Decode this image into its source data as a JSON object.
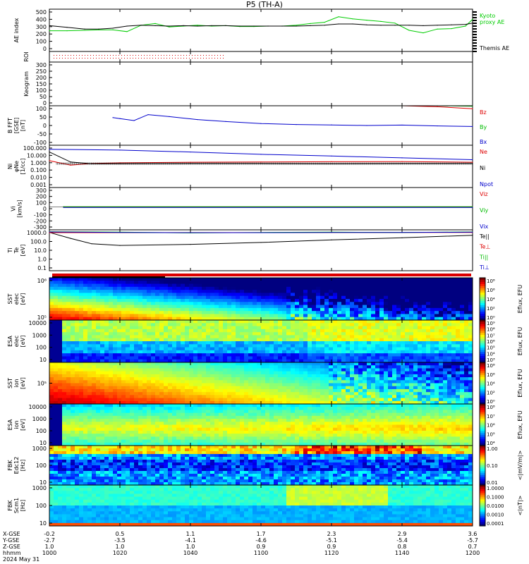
{
  "title": "P5 (TH-A)",
  "chart_data": [
    {
      "type": "line",
      "panel": "ae",
      "ylabel": "AE index",
      "ylim": [
        0,
        500
      ],
      "yticks": [
        "500",
        "400",
        "300",
        "200",
        "100",
        "0"
      ],
      "series": [
        {
          "name": "Kyoto\nproxy AE",
          "color": "#00cc00",
          "x": [
            0,
            5,
            10,
            14,
            18,
            22,
            26,
            30,
            34,
            38,
            42,
            46,
            50,
            54,
            58,
            62,
            66,
            70,
            74,
            78,
            82,
            86,
            90,
            94,
            98,
            102,
            106,
            110,
            114,
            118,
            120
          ],
          "y": [
            245,
            245,
            250,
            255,
            255,
            235,
            310,
            330,
            290,
            300,
            310,
            300,
            305,
            295,
            295,
            300,
            300,
            310,
            330,
            345,
            410,
            385,
            370,
            355,
            335,
            250,
            220,
            265,
            270,
            300,
            380
          ]
        },
        {
          "name": "Themis AE",
          "color": "#000000",
          "x": [
            0,
            5,
            10,
            14,
            18,
            22,
            26,
            30,
            34,
            38,
            42,
            46,
            50,
            54,
            58,
            62,
            66,
            70,
            74,
            78,
            82,
            86,
            90,
            94,
            98,
            102,
            106,
            110,
            114,
            118,
            120
          ],
          "y": [
            305,
            285,
            265,
            265,
            275,
            300,
            310,
            305,
            300,
            305,
            300,
            305,
            305,
            300,
            300,
            300,
            300,
            300,
            305,
            310,
            325,
            325,
            315,
            310,
            310,
            310,
            305,
            310,
            315,
            320,
            335
          ]
        }
      ]
    },
    {
      "type": "scatter",
      "panel": "roi",
      "ylabel": "ROI"
    },
    {
      "type": "line",
      "panel": "keogram",
      "ylabel": "Keogram",
      "ylim": [
        0,
        300
      ],
      "yticks": [
        "300",
        "250",
        "200",
        "150",
        "100",
        "50",
        "0"
      ]
    },
    {
      "type": "line",
      "panel": "bfft",
      "ylabel": "B FFT\n[GSE]\n[nT]",
      "ylim": [
        -100,
        100
      ],
      "yticks": [
        "100",
        "50",
        "0",
        "-50",
        "-100"
      ],
      "series": [
        {
          "name": "Bz",
          "color": "#dd0000",
          "x": [
            100,
            110,
            120
          ],
          "y": [
            100,
            95,
            85
          ]
        },
        {
          "name": "By",
          "color": "#00bb00",
          "x": [
            100,
            110,
            120
          ],
          "y": [
            100,
            100,
            98
          ]
        },
        {
          "name": "Bx",
          "color": "#0000cc",
          "x": [
            18,
            20,
            24,
            28,
            34,
            42,
            50,
            60,
            70,
            80,
            90,
            100,
            110,
            120
          ],
          "y": [
            40,
            35,
            25,
            55,
            45,
            30,
            20,
            10,
            5,
            3,
            0,
            2,
            -2,
            -5
          ]
        }
      ]
    },
    {
      "type": "line",
      "panel": "density",
      "ylabel": "Ni\nφNe\n[1/cc]",
      "ylog": true,
      "ylim": [
        0.001,
        300
      ],
      "yticks": [
        "100.000",
        "10.000",
        "1.000",
        "0.100",
        "0.010",
        "0.001"
      ],
      "series": [
        {
          "name": "Ne",
          "color": "#dd0000",
          "x": [
            0,
            6,
            12,
            20,
            40,
            60,
            80,
            100,
            120
          ],
          "y": [
            3,
            0.8,
            1.3,
            1.6,
            1.9,
            2.0,
            2.2,
            2.3,
            1.9
          ]
        },
        {
          "name": "Ni",
          "color": "#000000",
          "x": [
            0,
            6,
            12,
            20,
            40,
            60,
            80,
            100,
            120
          ],
          "y": [
            40,
            2,
            1.2,
            1.2,
            1.3,
            1.3,
            1.2,
            1.3,
            1.3
          ]
        },
        {
          "name": "Npot",
          "color": "#0000cc",
          "x": [
            0,
            20,
            40,
            60,
            80,
            100,
            120
          ],
          "y": [
            90,
            70,
            40,
            20,
            12,
            7,
            4
          ]
        }
      ]
    },
    {
      "type": "line",
      "panel": "velocity",
      "ylabel": "Vi\n[km/s]",
      "ylim": [
        -350,
        300
      ],
      "yticks": [
        "300",
        "200",
        "100",
        "0",
        "-100",
        "-200",
        "-300"
      ],
      "series": [
        {
          "name": "Viz",
          "color": "#dd0000",
          "x": [
            4,
            120
          ],
          "y": [
            0,
            0
          ]
        },
        {
          "name": "Viy",
          "color": "#00bb00",
          "x": [
            4,
            120
          ],
          "y": [
            5,
            5
          ]
        },
        {
          "name": "Vix",
          "color": "#0000cc",
          "x": [
            4,
            120
          ],
          "y": [
            -5,
            -5
          ]
        }
      ]
    },
    {
      "type": "line",
      "panel": "temperature",
      "ylabel": "Ti\nTe\n[eV]",
      "ylog": true,
      "ylim": [
        0.05,
        3000
      ],
      "yticks": [
        "1000.0",
        "100.0",
        "10.0",
        "1.0",
        "0.1"
      ],
      "series": [
        {
          "name": "Te||",
          "color": "#000000",
          "x": [
            0,
            6,
            12,
            20,
            40,
            60,
            80,
            100,
            120
          ],
          "y": [
            1500,
            300,
            70,
            45,
            60,
            100,
            200,
            350,
            700
          ]
        },
        {
          "name": "Te⊥",
          "color": "#dd0000",
          "x": [
            0,
            120
          ],
          "y": [
            1400,
            1500
          ]
        },
        {
          "name": "Ti||",
          "color": "#00bb00",
          "x": [
            0,
            20,
            40,
            60,
            80,
            100,
            120
          ],
          "y": [
            1800,
            1600,
            1300,
            1500,
            1600,
            1500,
            1700
          ]
        },
        {
          "name": "Ti⊥",
          "color": "#0000cc",
          "x": [
            0,
            20,
            40,
            60,
            80,
            100,
            120
          ],
          "y": [
            1700,
            1500,
            1400,
            1400,
            1500,
            1500,
            1600
          ]
        }
      ]
    },
    {
      "type": "heatmap",
      "panel": "sst_e",
      "ylabel": "SST\nelec\n[eV]",
      "yticks": [
        "10⁶",
        "10⁵"
      ],
      "colorbar": {
        "label": "Eflux, EFU",
        "ticks": [
          "10⁸",
          "10⁶",
          "10⁴",
          "10²",
          "10⁰"
        ]
      }
    },
    {
      "type": "heatmap",
      "panel": "esa_e",
      "ylabel": "ESA\nelec\n[eV]",
      "yticks": [
        "10000",
        "1000",
        "100",
        "10"
      ],
      "colorbar": {
        "label": "Eflux, EFU",
        "ticks": [
          "10⁹",
          "10⁸",
          "10⁷",
          "10⁶",
          "10⁵",
          "10⁴",
          "10³"
        ]
      }
    },
    {
      "type": "heatmap",
      "panel": "sst_i",
      "ylabel": "SST\nion\n[eV]",
      "yticks": [
        "10⁵"
      ],
      "colorbar": {
        "label": "Eflux, EFU",
        "ticks": [
          "10⁸",
          "10⁶",
          "10⁴",
          "10²",
          "10⁰"
        ]
      }
    },
    {
      "type": "heatmap",
      "panel": "esa_i",
      "ylabel": "ESA\nion\n[eV]",
      "yticks": [
        "10000",
        "1000",
        "100",
        "10"
      ],
      "colorbar": {
        "label": "Eflux, EFU",
        "ticks": [
          "10⁸",
          "10⁷",
          "10⁶",
          "10⁵",
          "10⁴"
        ]
      }
    },
    {
      "type": "heatmap",
      "panel": "fbk_e",
      "ylabel": "FBK\nEdc12\n[Hz]",
      "yticks": [
        "1000",
        "100",
        "10"
      ],
      "colorbar": {
        "label": "<|mV/m|>",
        "ticks": [
          "1.00",
          "0.10",
          "0.01"
        ]
      }
    },
    {
      "type": "heatmap",
      "panel": "fbk_b",
      "ylabel": "FBK\nScm1\n[Hz]",
      "yticks": [
        "1000",
        "100",
        "10"
      ],
      "colorbar": {
        "label": "<|nT|>",
        "ticks": [
          "1.0000",
          "0.1000",
          "0.0100",
          "0.0010",
          "0.0001"
        ]
      }
    }
  ],
  "xaxis": {
    "rows": [
      {
        "label": "X-GSE",
        "values": [
          "-0.2",
          "0.5",
          "1.1",
          "1.7",
          "2.3",
          "2.9",
          "3.6"
        ]
      },
      {
        "label": "Y-GSE",
        "values": [
          "-2.7",
          "-3.5",
          "-4.1",
          "-4.6",
          "-5.1",
          "-5.4",
          "-5.7"
        ]
      },
      {
        "label": "Z-GSE",
        "values": [
          "1.0",
          "1.0",
          "1.0",
          "0.9",
          "0.9",
          "0.8",
          "0.7"
        ]
      },
      {
        "label": "hhmm",
        "values": [
          "1000",
          "1020",
          "1040",
          "1100",
          "1120",
          "1140",
          "1200"
        ]
      }
    ],
    "date": "2024 May 31"
  }
}
